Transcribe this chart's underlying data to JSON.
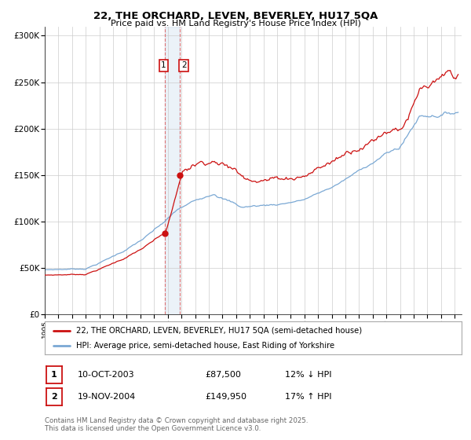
{
  "title": "22, THE ORCHARD, LEVEN, BEVERLEY, HU17 5QA",
  "subtitle": "Price paid vs. HM Land Registry's House Price Index (HPI)",
  "legend_line1": "22, THE ORCHARD, LEVEN, BEVERLEY, HU17 5QA (semi-detached house)",
  "legend_line2": "HPI: Average price, semi-detached house, East Riding of Yorkshire",
  "transaction1_date": "10-OCT-2003",
  "transaction1_price": "£87,500",
  "transaction1_hpi": "12% ↓ HPI",
  "transaction2_date": "19-NOV-2004",
  "transaction2_price": "£149,950",
  "transaction2_hpi": "17% ↑ HPI",
  "footer": "Contains HM Land Registry data © Crown copyright and database right 2025.\nThis data is licensed under the Open Government Licence v3.0.",
  "hpi_color": "#7aa8d4",
  "price_color": "#cc1111",
  "transaction1_x": 2003.78,
  "transaction1_y": 87500,
  "transaction2_x": 2004.89,
  "transaction2_y": 149950,
  "ylim": [
    0,
    310000
  ],
  "xlim_start": 1995.0,
  "xlim_end": 2025.5,
  "background_color": "#ffffff",
  "grid_color": "#cccccc"
}
